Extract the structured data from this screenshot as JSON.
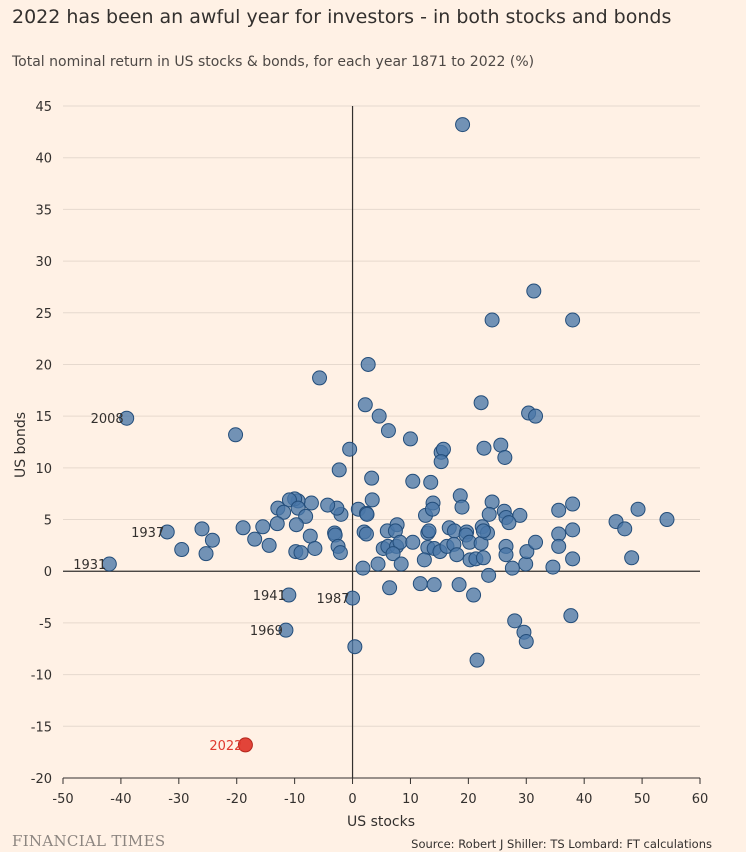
{
  "header": {
    "title": "2022 has been an awful year for investors - in both stocks and bonds",
    "subtitle": "Total nominal return in US stocks & bonds, for each year 1871 to 2022 (%)"
  },
  "footer": {
    "brand": "FINANCIAL TIMES",
    "source": "Source: Robert J Shiller: TS Lombard: FT calculations"
  },
  "colors": {
    "background": "#fff1e5",
    "point": "#4a77a8",
    "point_stroke": "#234d7a",
    "highlight": "#e03a2f",
    "gridline": "#e6d9ce",
    "axis": "#33302e",
    "label": "#33302e"
  },
  "chart_data": {
    "type": "scatter",
    "title": "2022 has been an awful year for investors - in both stocks and bonds",
    "xlabel": "US stocks",
    "ylabel": "US bonds",
    "xlim": [
      -50,
      60
    ],
    "ylim": [
      -20,
      45
    ],
    "xticks": [
      -50,
      -40,
      -30,
      -20,
      -10,
      0,
      10,
      20,
      30,
      40,
      50,
      60
    ],
    "yticks": [
      -20,
      -15,
      -10,
      -5,
      0,
      5,
      10,
      15,
      20,
      25,
      30,
      35,
      40,
      45
    ],
    "grid": "horizontal",
    "labeled_points": [
      {
        "label": "2008",
        "x": -39,
        "y": 14.8
      },
      {
        "label": "1937",
        "x": -32,
        "y": 3.8
      },
      {
        "label": "1931",
        "x": -42,
        "y": 0.7
      },
      {
        "label": "1941",
        "x": -11,
        "y": -2.3
      },
      {
        "label": "1987",
        "x": 0,
        "y": -2.6
      },
      {
        "label": "1969",
        "x": -11.5,
        "y": -5.7
      },
      {
        "label": "2022",
        "x": -18.5,
        "y": -16.8,
        "highlight": true
      }
    ],
    "points": [
      [
        19,
        43.2
      ],
      [
        31.3,
        27.1
      ],
      [
        24.1,
        24.3
      ],
      [
        38,
        24.3
      ],
      [
        2.7,
        20
      ],
      [
        -5.7,
        18.7
      ],
      [
        2.2,
        16.1
      ],
      [
        22.2,
        16.3
      ],
      [
        4.6,
        15
      ],
      [
        30.4,
        15.3
      ],
      [
        31.6,
        15
      ],
      [
        -20.2,
        13.2
      ],
      [
        6.2,
        13.6
      ],
      [
        10,
        12.8
      ],
      [
        -0.5,
        11.8
      ],
      [
        15.3,
        11.5
      ],
      [
        15.7,
        11.8
      ],
      [
        15.3,
        10.6
      ],
      [
        25.6,
        12.2
      ],
      [
        22.7,
        11.9
      ],
      [
        26.3,
        11
      ],
      [
        -2.3,
        9.8
      ],
      [
        3.3,
        9
      ],
      [
        10.4,
        8.7
      ],
      [
        13.5,
        8.6
      ],
      [
        18.6,
        7.3
      ],
      [
        3.4,
        6.9
      ],
      [
        13.9,
        6.6
      ],
      [
        18.9,
        6.2
      ],
      [
        24.1,
        6.7
      ],
      [
        38,
        6.5
      ],
      [
        49.3,
        6
      ],
      [
        54.3,
        5
      ],
      [
        45.5,
        4.8
      ],
      [
        47,
        4.1
      ],
      [
        35.6,
        5.9
      ],
      [
        26.2,
        5.8
      ],
      [
        26.5,
        5.2
      ],
      [
        28.9,
        5.4
      ],
      [
        27,
        4.7
      ],
      [
        23.6,
        5.5
      ],
      [
        12.6,
        5.4
      ],
      [
        13.8,
        6
      ],
      [
        1,
        6
      ],
      [
        2.4,
        5.6
      ],
      [
        -2,
        5.5
      ],
      [
        -2.7,
        6.1
      ],
      [
        -4.3,
        6.4
      ],
      [
        -7.1,
        6.6
      ],
      [
        -9.4,
        6.8
      ],
      [
        -10,
        7
      ],
      [
        -10.9,
        6.9
      ],
      [
        -9.4,
        6.1
      ],
      [
        -8.1,
        5.3
      ],
      [
        -12.9,
        6.1
      ],
      [
        -11.9,
        5.7
      ],
      [
        -13,
        4.6
      ],
      [
        -9.7,
        4.5
      ],
      [
        -15.5,
        4.3
      ],
      [
        -18.9,
        4.2
      ],
      [
        -26,
        4.1
      ],
      [
        -24.2,
        3
      ],
      [
        -25.3,
        1.7
      ],
      [
        -29.5,
        2.1
      ],
      [
        -14.4,
        2.5
      ],
      [
        -16.9,
        3.1
      ],
      [
        -7.3,
        3.4
      ],
      [
        -6.5,
        2.2
      ],
      [
        -9.8,
        1.9
      ],
      [
        -8.9,
        1.8
      ],
      [
        -3.1,
        3.7
      ],
      [
        -3,
        3.5
      ],
      [
        -2.5,
        2.4
      ],
      [
        -2.1,
        1.8
      ],
      [
        2,
        3.8
      ],
      [
        2.4,
        3.6
      ],
      [
        2.5,
        5.5
      ],
      [
        6,
        3.9
      ],
      [
        7.7,
        4.5
      ],
      [
        7.4,
        3.9
      ],
      [
        5.3,
        2.2
      ],
      [
        6.1,
        2.4
      ],
      [
        7.6,
        2.4
      ],
      [
        8.2,
        2.8
      ],
      [
        10.4,
        2.8
      ],
      [
        13,
        3.7
      ],
      [
        13.2,
        3.9
      ],
      [
        13,
        2.3
      ],
      [
        14.1,
        2.2
      ],
      [
        15.1,
        1.9
      ],
      [
        16.3,
        2.4
      ],
      [
        16.7,
        4.2
      ],
      [
        17.6,
        3.9
      ],
      [
        17.5,
        2.6
      ],
      [
        18,
        1.6
      ],
      [
        19.7,
        3.8
      ],
      [
        19.6,
        3.5
      ],
      [
        20.2,
        2.8
      ],
      [
        22.2,
        2.7
      ],
      [
        22.4,
        4.3
      ],
      [
        23.3,
        3.7
      ],
      [
        22.6,
        3.9
      ],
      [
        20.3,
        1.1
      ],
      [
        21.3,
        1.2
      ],
      [
        22.6,
        1.3
      ],
      [
        26.5,
        2.4
      ],
      [
        26.5,
        1.6
      ],
      [
        27.6,
        0.3
      ],
      [
        29.9,
        0.7
      ],
      [
        30.1,
        1.9
      ],
      [
        31.6,
        2.8
      ],
      [
        35.6,
        3.6
      ],
      [
        35.6,
        2.4
      ],
      [
        38,
        1.2
      ],
      [
        38,
        4
      ],
      [
        48.2,
        1.3
      ],
      [
        34.6,
        0.4
      ],
      [
        7,
        1.7
      ],
      [
        8.4,
        0.7
      ],
      [
        1.8,
        0.3
      ],
      [
        4.4,
        0.7
      ],
      [
        12.4,
        1.1
      ],
      [
        6.4,
        -1.6
      ],
      [
        11.7,
        -1.2
      ],
      [
        14.1,
        -1.3
      ],
      [
        18.4,
        -1.3
      ],
      [
        20.9,
        -2.3
      ],
      [
        23.5,
        -0.4
      ],
      [
        0.4,
        -7.3
      ],
      [
        21.5,
        -8.6
      ],
      [
        28,
        -4.8
      ],
      [
        29.6,
        -5.9
      ],
      [
        30,
        -6.8
      ],
      [
        37.7,
        -4.3
      ]
    ]
  }
}
